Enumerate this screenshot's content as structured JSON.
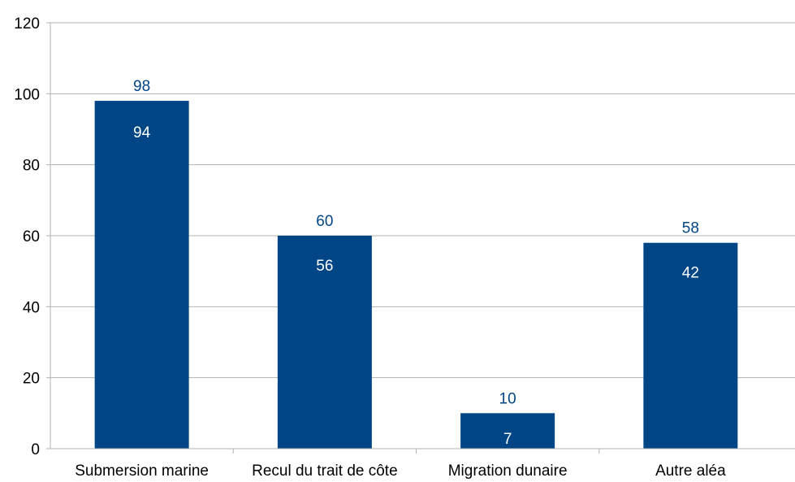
{
  "chart_data": {
    "type": "bar",
    "categories": [
      "Submersion marine",
      "Recul du trait de côte",
      "Migration dunaire",
      "Autre aléa"
    ],
    "values": [
      98,
      60,
      10,
      58
    ],
    "inner_values": [
      94,
      56,
      7,
      42
    ],
    "ylim": [
      0,
      120
    ],
    "yticks": [
      0,
      20,
      40,
      60,
      80,
      100,
      120
    ],
    "grid": true,
    "legend": "none",
    "title": "",
    "xlabel": "",
    "ylabel": "",
    "colors": {
      "bar": "#004586",
      "top_label": "#004586",
      "inner_label": "#ffffff",
      "grid": "#b3b3b3"
    }
  }
}
